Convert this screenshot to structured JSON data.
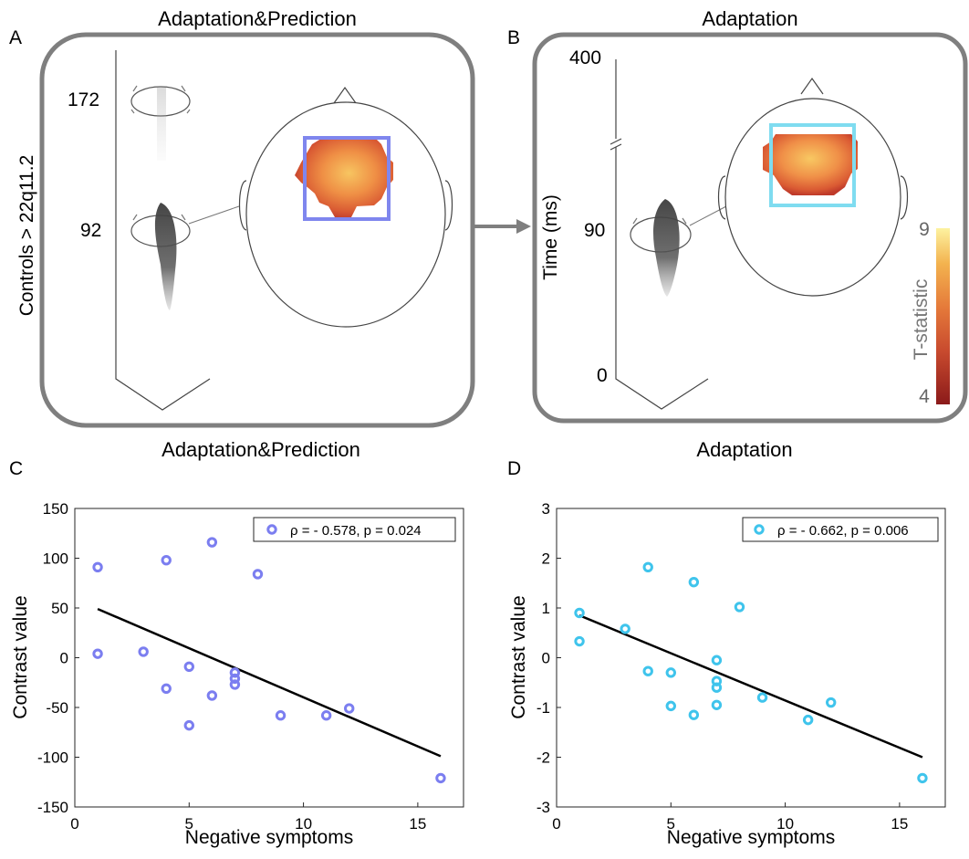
{
  "panels": {
    "A": {
      "letter": "A",
      "title": "Adaptation&Prediction",
      "ylabel": "Controls > 22q11.2",
      "time_labels": [
        "172",
        "92"
      ],
      "roi_color": "#7f86ee"
    },
    "B": {
      "letter": "B",
      "title": "Adaptation",
      "ylabel": "Time (ms)",
      "time_labels": [
        "400",
        "90",
        "0"
      ],
      "roi_color": "#7fdcf0"
    },
    "colorbar": {
      "label": "T-statistic",
      "max_label": "9",
      "min_label": "4",
      "colors": [
        "#8b1a1a",
        "#c84a2e",
        "#e57a3a",
        "#f3b34f",
        "#fdf2a0"
      ]
    }
  },
  "chart_data": [
    {
      "type": "scatter",
      "letter": "C",
      "title": "Adaptation&Prediction",
      "xlabel": "Negative symptoms",
      "ylabel": "Contrast value",
      "xlim": [
        0,
        17
      ],
      "ylim": [
        -150,
        150
      ],
      "xticks": [
        "0",
        "5",
        "10",
        "15"
      ],
      "yticks": [
        "150",
        "100",
        "50",
        "0",
        "-50",
        "-100",
        "-150"
      ],
      "xtick_values": [
        0,
        5,
        10,
        15
      ],
      "ytick_values": [
        150,
        100,
        50,
        0,
        -50,
        -100,
        -150
      ],
      "legend": "ρ = - 0.578, p = 0.024",
      "legend_position": "top-right",
      "grid": false,
      "marker_color": "#7b7ef0",
      "points": [
        [
          1,
          91
        ],
        [
          1,
          4
        ],
        [
          3,
          6
        ],
        [
          4,
          98
        ],
        [
          4,
          -31
        ],
        [
          5,
          -9
        ],
        [
          5,
          -68
        ],
        [
          6,
          116
        ],
        [
          6,
          -38
        ],
        [
          7,
          -15
        ],
        [
          7,
          -21
        ],
        [
          7,
          -27
        ],
        [
          8,
          84
        ],
        [
          9,
          -58
        ],
        [
          11,
          -58
        ],
        [
          12,
          -51
        ],
        [
          16,
          -121
        ]
      ],
      "fit_line": [
        [
          1,
          49
        ],
        [
          16,
          -99
        ]
      ]
    },
    {
      "type": "scatter",
      "letter": "D",
      "title": "Adaptation",
      "xlabel": "Negative symptoms",
      "ylabel": "Contrast value",
      "xlim": [
        0,
        17
      ],
      "ylim": [
        -3,
        3
      ],
      "xticks": [
        "0",
        "5",
        "10",
        "15"
      ],
      "yticks": [
        "3",
        "2",
        "1",
        "0",
        "-1",
        "-2",
        "-3"
      ],
      "xtick_values": [
        0,
        5,
        10,
        15
      ],
      "ytick_values": [
        3,
        2,
        1,
        0,
        -1,
        -2,
        -3
      ],
      "legend": "ρ = - 0.662, p = 0.006",
      "legend_position": "top-right",
      "grid": false,
      "marker_color": "#3fc4ec",
      "points": [
        [
          1,
          0.9
        ],
        [
          1,
          0.33
        ],
        [
          3,
          0.58
        ],
        [
          4,
          1.82
        ],
        [
          4,
          -0.27
        ],
        [
          5,
          -0.3
        ],
        [
          5,
          -0.97
        ],
        [
          6,
          1.52
        ],
        [
          6,
          -1.15
        ],
        [
          7,
          -0.05
        ],
        [
          7,
          -0.47
        ],
        [
          7,
          -0.6
        ],
        [
          7,
          -0.95
        ],
        [
          8,
          1.02
        ],
        [
          9,
          -0.8
        ],
        [
          11,
          -1.25
        ],
        [
          12,
          -0.9
        ],
        [
          16,
          -2.42
        ]
      ],
      "fit_line": [
        [
          1,
          0.85
        ],
        [
          16,
          -2.0
        ]
      ]
    }
  ]
}
